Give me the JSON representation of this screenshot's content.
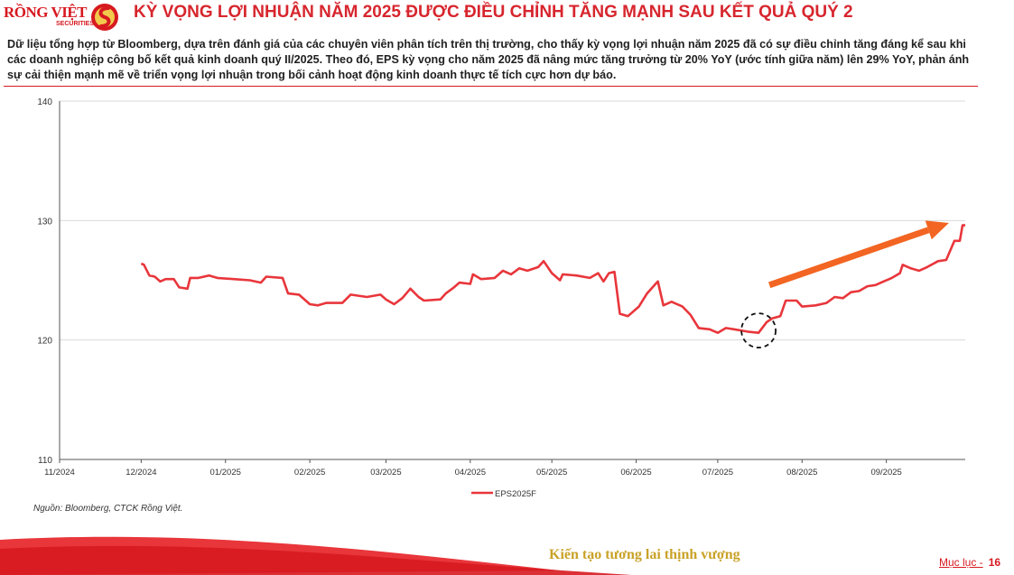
{
  "brand": {
    "name": "RỒNG VIỆT",
    "sub": "SECURITIES"
  },
  "title": "KỲ VỌNG LỢI NHUẬN NĂM 2025 ĐƯỢC ĐIỀU CHỈNH TĂNG MẠNH SAU KẾT QUẢ QUÝ 2",
  "description": "Dữ liệu tổng hợp từ Bloomberg, dựa trên đánh giá của các chuyên viên phân tích trên thị trường, cho thấy kỳ vọng lợi nhuận năm 2025 đã có sự điều chỉnh tăng đáng kể sau khi các doanh nghiệp công bố kết quả kinh doanh quý II/2025. Theo đó, EPS kỳ vọng cho năm 2025 đã nâng mức tăng trưởng từ 20% YoY (ước tính giữa năm) lên 29% YoY, phản ánh sự cải thiện mạnh mẽ về triển vọng lợi nhuận trong bối cảnh hoạt động kinh doanh thực tế tích cực hơn dự báo.",
  "source": "Nguồn: Bloomberg, CTCK Rồng Việt.",
  "footer": {
    "slogan": "Kiến tạo tương lai thịnh vượng",
    "toc_label": "Mục lục -",
    "page_number": "16"
  },
  "colors": {
    "brand_red": "#d71920",
    "series": "#e8363b",
    "arrow": "#f26522",
    "slogan_gold": "#c9a227"
  },
  "chart_data": {
    "type": "line",
    "title": "",
    "xlabel": "",
    "ylabel": "",
    "ylim": [
      110,
      140
    ],
    "yticks": [
      110,
      120,
      130,
      140
    ],
    "xlim": [
      "2024-11-01",
      "2025-09-30"
    ],
    "xticks": [
      {
        "date": "2024-11-01",
        "label": "11/2024"
      },
      {
        "date": "2024-12-01",
        "label": "12/2024"
      },
      {
        "date": "2025-01-01",
        "label": "01/2025"
      },
      {
        "date": "2025-02-01",
        "label": "02/2025"
      },
      {
        "date": "2025-03-01",
        "label": "03/2025"
      },
      {
        "date": "2025-04-01",
        "label": "04/2025"
      },
      {
        "date": "2025-05-01",
        "label": "05/2025"
      },
      {
        "date": "2025-06-01",
        "label": "06/2025"
      },
      {
        "date": "2025-07-01",
        "label": "07/2025"
      },
      {
        "date": "2025-08-01",
        "label": "08/2025"
      },
      {
        "date": "2025-09-01",
        "label": "09/2025"
      }
    ],
    "grid": "horizontal",
    "legend_position": "bottom-center",
    "series": [
      {
        "name": "EPS2025F",
        "points": [
          [
            "2024-12-01",
            126.4
          ],
          [
            "2024-12-02",
            126.3
          ],
          [
            "2024-12-04",
            125.4
          ],
          [
            "2024-12-06",
            125.3
          ],
          [
            "2024-12-08",
            124.9
          ],
          [
            "2024-12-10",
            125.1
          ],
          [
            "2024-12-13",
            125.1
          ],
          [
            "2024-12-15",
            124.4
          ],
          [
            "2024-12-18",
            124.3
          ],
          [
            "2024-12-19",
            125.2
          ],
          [
            "2024-12-22",
            125.2
          ],
          [
            "2024-12-26",
            125.4
          ],
          [
            "2024-12-29",
            125.2
          ],
          [
            "2025-01-04",
            125.1
          ],
          [
            "2025-01-10",
            125.0
          ],
          [
            "2025-01-14",
            124.8
          ],
          [
            "2025-01-16",
            125.3
          ],
          [
            "2025-01-22",
            125.2
          ],
          [
            "2025-01-24",
            123.9
          ],
          [
            "2025-01-28",
            123.8
          ],
          [
            "2025-02-01",
            123.0
          ],
          [
            "2025-02-04",
            122.9
          ],
          [
            "2025-02-07",
            123.1
          ],
          [
            "2025-02-13",
            123.1
          ],
          [
            "2025-02-16",
            123.8
          ],
          [
            "2025-02-22",
            123.6
          ],
          [
            "2025-02-27",
            123.8
          ],
          [
            "2025-03-01",
            123.4
          ],
          [
            "2025-03-04",
            123.0
          ],
          [
            "2025-03-07",
            123.5
          ],
          [
            "2025-03-10",
            124.3
          ],
          [
            "2025-03-13",
            123.6
          ],
          [
            "2025-03-15",
            123.3
          ],
          [
            "2025-03-21",
            123.4
          ],
          [
            "2025-03-23",
            123.9
          ],
          [
            "2025-03-26",
            124.4
          ],
          [
            "2025-03-28",
            124.8
          ],
          [
            "2025-04-01",
            124.7
          ],
          [
            "2025-04-02",
            125.5
          ],
          [
            "2025-04-05",
            125.1
          ],
          [
            "2025-04-10",
            125.2
          ],
          [
            "2025-04-13",
            125.8
          ],
          [
            "2025-04-16",
            125.5
          ],
          [
            "2025-04-19",
            126.0
          ],
          [
            "2025-04-22",
            125.8
          ],
          [
            "2025-04-26",
            126.1
          ],
          [
            "2025-04-28",
            126.6
          ],
          [
            "2025-05-01",
            125.6
          ],
          [
            "2025-05-04",
            125.0
          ],
          [
            "2025-05-05",
            125.5
          ],
          [
            "2025-05-10",
            125.4
          ],
          [
            "2025-05-15",
            125.2
          ],
          [
            "2025-05-18",
            125.6
          ],
          [
            "2025-05-20",
            124.9
          ],
          [
            "2025-05-22",
            125.6
          ],
          [
            "2025-05-24",
            125.7
          ],
          [
            "2025-05-26",
            122.2
          ],
          [
            "2025-05-29",
            122.0
          ],
          [
            "2025-06-02",
            122.8
          ],
          [
            "2025-06-05",
            123.9
          ],
          [
            "2025-06-07",
            124.4
          ],
          [
            "2025-06-09",
            124.9
          ],
          [
            "2025-06-11",
            122.9
          ],
          [
            "2025-06-14",
            123.2
          ],
          [
            "2025-06-18",
            122.8
          ],
          [
            "2025-06-21",
            122.1
          ],
          [
            "2025-06-24",
            121.0
          ],
          [
            "2025-06-28",
            120.9
          ],
          [
            "2025-07-01",
            120.6
          ],
          [
            "2025-07-04",
            121.0
          ],
          [
            "2025-07-07",
            120.9
          ],
          [
            "2025-07-12",
            120.7
          ],
          [
            "2025-07-16",
            120.6
          ],
          [
            "2025-07-19",
            121.5
          ],
          [
            "2025-07-21",
            121.8
          ],
          [
            "2025-07-24",
            122.0
          ],
          [
            "2025-07-26",
            123.3
          ],
          [
            "2025-07-30",
            123.3
          ],
          [
            "2025-08-01",
            122.8
          ],
          [
            "2025-08-06",
            122.9
          ],
          [
            "2025-08-10",
            123.1
          ],
          [
            "2025-08-13",
            123.6
          ],
          [
            "2025-08-16",
            123.5
          ],
          [
            "2025-08-19",
            124.0
          ],
          [
            "2025-08-22",
            124.1
          ],
          [
            "2025-08-25",
            124.5
          ],
          [
            "2025-08-28",
            124.6
          ],
          [
            "2025-08-31",
            124.9
          ],
          [
            "2025-09-03",
            125.2
          ],
          [
            "2025-09-06",
            125.6
          ],
          [
            "2025-09-07",
            126.3
          ],
          [
            "2025-09-10",
            126.0
          ],
          [
            "2025-09-13",
            125.8
          ],
          [
            "2025-09-16",
            126.1
          ],
          [
            "2025-09-20",
            126.6
          ],
          [
            "2025-09-23",
            126.7
          ],
          [
            "2025-09-26",
            128.3
          ],
          [
            "2025-09-28",
            128.3
          ],
          [
            "2025-09-29",
            129.6
          ],
          [
            "2025-09-30",
            129.6
          ]
        ]
      }
    ],
    "annotations": [
      {
        "type": "dashed-circle",
        "date": "2025-07-16",
        "value": 120.8
      },
      {
        "type": "arrow",
        "from": [
          "2025-07-20",
          124.6
        ],
        "to": [
          "2025-09-24",
          129.8
        ]
      }
    ]
  }
}
